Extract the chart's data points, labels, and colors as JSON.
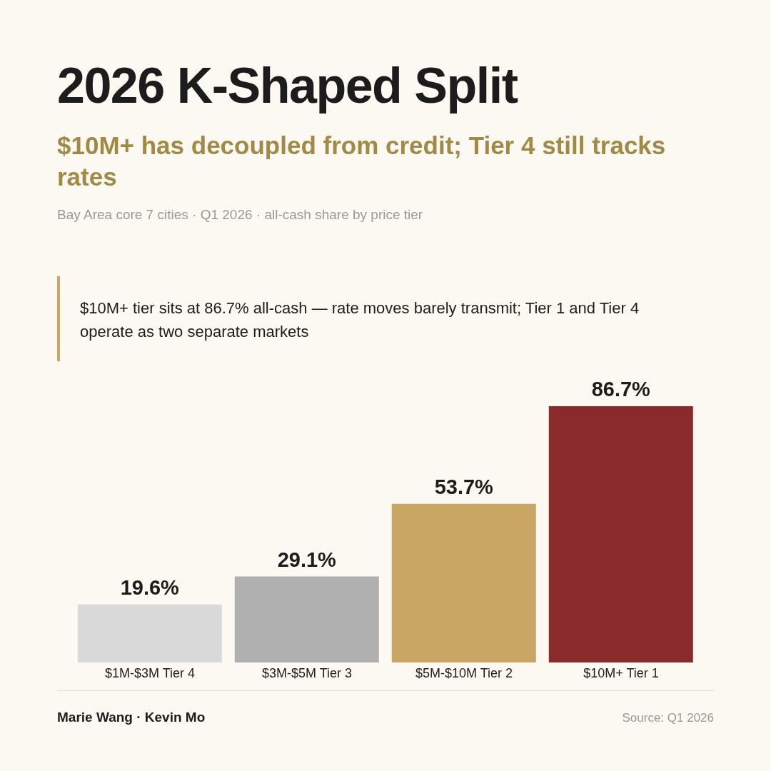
{
  "chart_data": {
    "type": "bar",
    "title": "2026 K-Shaped Split",
    "subtitle": "$10M+ has decoupled from credit; Tier 4 still tracks rates",
    "categories": [
      "$1M-$3M Tier 4",
      "$3M-$5M Tier 3",
      "$5M-$10M Tier 2",
      "$10M+ Tier 1"
    ],
    "values": [
      19.6,
      29.1,
      53.7,
      86.7
    ],
    "colors": [
      "#d9d9d9",
      "#b0b0b0",
      "#c9a663",
      "#8b2a2d"
    ],
    "value_labels": [
      "19.6%",
      "29.1%",
      "53.7%",
      "86.7%"
    ],
    "annotations": [
      "Bay Area core 7 cities · Q1 2026 · all-cash share by price tier",
      "$10M+ tier sits at 86.7% all-cash — rate moves barely transmit; Tier 1 and Tier 4 operate as two separate markets",
      "Marie Wang · Kevin Mo",
      "Source: Q1 2026"
    ]
  }
}
